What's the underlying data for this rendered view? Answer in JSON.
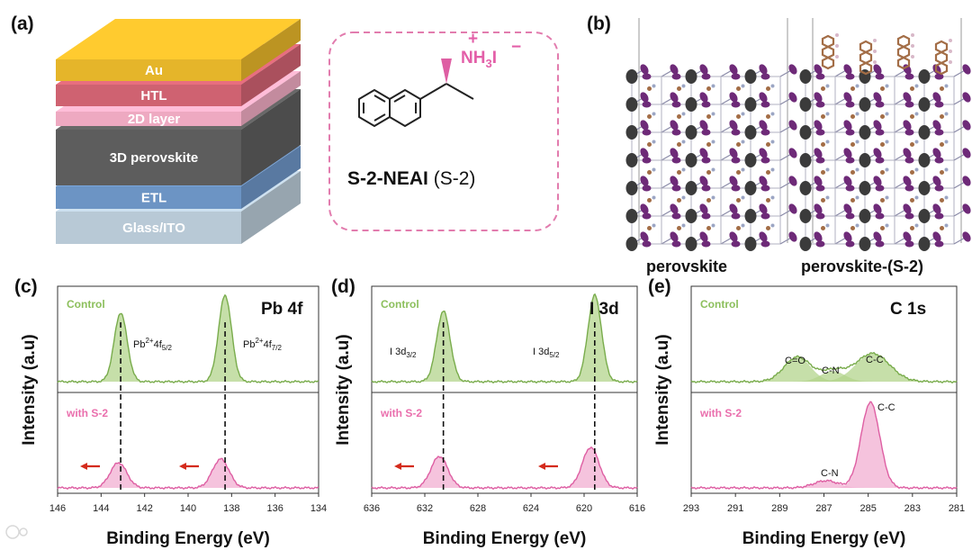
{
  "colors": {
    "control_line": "#79ac4c",
    "control_fill": "#b3d48c",
    "s2_line": "#de5fa3",
    "s2_fill": "#f2afd2",
    "control_text": "#8cbf5c",
    "s2_text": "#ea6fad",
    "arrow": "#d42b1c",
    "au": "#e5b52a",
    "htl": "#cf6271",
    "layer2d": "#eea9c1",
    "perov3d": "#5d5d5d",
    "etl": "#6c94c4",
    "glass": "#b8c9d6",
    "dashed_box": "#e27cae",
    "pb": "#3b3b3b",
    "iodine": "#6e2a78",
    "organic": "#a36d46"
  },
  "panel_a": {
    "letter": "(a)",
    "layers": [
      {
        "label": "Au"
      },
      {
        "label": "HTL"
      },
      {
        "label": "2D layer"
      },
      {
        "label": "3D perovskite"
      },
      {
        "label": "ETL"
      },
      {
        "label": "Glass/ITO"
      }
    ],
    "molecule": {
      "ammonium_main": "NH",
      "ammonium_sub": "3",
      "ammonium_tail": "I",
      "minus": "−",
      "plus": "+",
      "name": "S-2-NEAI",
      "short": "(S-2)"
    }
  },
  "panel_b": {
    "letter": "(b)",
    "labels": [
      "perovskite",
      "perovskite-(S-2)"
    ]
  },
  "xps": [
    {
      "letter": "(c)",
      "title": "Pb 4f",
      "top_label": "Control",
      "bottom_label": "with S-2",
      "ylabel": "Intensity (a.u)",
      "xlabel": "Binding Energy (eV)",
      "ticks": [
        "146",
        "144",
        "142",
        "140",
        "138",
        "136",
        "134"
      ],
      "peak_labels": [
        {
          "main": "Pb",
          "sup": "2+",
          "mid": "4f",
          "sub": "5/2"
        },
        {
          "main": "Pb",
          "sup": "2+",
          "mid": "4f",
          "sub": "7/2"
        }
      ]
    },
    {
      "letter": "(d)",
      "title": "I  3d",
      "top_label": "Control",
      "bottom_label": "with S-2",
      "ylabel": "Intensity (a.u)",
      "xlabel": "Binding Energy (eV)",
      "ticks": [
        "636",
        "632",
        "628",
        "624",
        "620",
        "616"
      ],
      "peak_labels": [
        {
          "main": "I 3d",
          "sub": "3/2"
        },
        {
          "main": "I 3d",
          "sub": "5/2"
        }
      ]
    },
    {
      "letter": "(e)",
      "title": "C  1s",
      "top_label": "Control",
      "bottom_label": "with S-2",
      "ylabel": "Intensity (a.u)",
      "xlabel": "Binding Energy (eV)",
      "ticks": [
        "293",
        "291",
        "289",
        "287",
        "285",
        "283",
        "281"
      ],
      "top_peaks": [
        "C=O",
        "C-N",
        "C-C"
      ],
      "bottom_peaks": [
        "C-N",
        "C-C"
      ]
    }
  ],
  "chart_data": [
    {
      "type": "line",
      "title": "Pb 4f",
      "xlabel": "Binding Energy (eV)",
      "ylabel": "Intensity (a.u)",
      "xlim": [
        146,
        134
      ],
      "series": [
        {
          "name": "Control",
          "peaks": [
            {
              "center": 143.1,
              "height": 0.78,
              "fwhm": 0.7
            },
            {
              "center": 138.3,
              "height": 0.98,
              "fwhm": 0.7
            }
          ]
        },
        {
          "name": "with S-2",
          "peaks": [
            {
              "center": 143.2,
              "height": 0.28,
              "fwhm": 0.9
            },
            {
              "center": 138.5,
              "height": 0.32,
              "fwhm": 0.9
            }
          ]
        }
      ],
      "reference_lines": [
        143.1,
        138.3
      ]
    },
    {
      "type": "line",
      "title": "I 3d",
      "xlabel": "Binding Energy (eV)",
      "ylabel": "Intensity (a.u)",
      "xlim": [
        636,
        616
      ],
      "series": [
        {
          "name": "Control",
          "peaks": [
            {
              "center": 630.6,
              "height": 0.8,
              "fwhm": 1.2
            },
            {
              "center": 619.2,
              "height": 0.98,
              "fwhm": 1.2
            }
          ]
        },
        {
          "name": "with S-2",
          "peaks": [
            {
              "center": 630.9,
              "height": 0.35,
              "fwhm": 1.5
            },
            {
              "center": 619.5,
              "height": 0.45,
              "fwhm": 1.5
            }
          ]
        }
      ],
      "reference_lines": [
        630.6,
        619.2
      ]
    },
    {
      "type": "line",
      "title": "C 1s",
      "xlabel": "Binding Energy (eV)",
      "ylabel": "Intensity (a.u)",
      "xlim": [
        293,
        281
      ],
      "series": [
        {
          "name": "Control",
          "peaks": [
            {
              "label": "C=O",
              "center": 288.2,
              "height": 0.28,
              "fwhm": 1.4
            },
            {
              "label": "C-N",
              "center": 286.6,
              "height": 0.12,
              "fwhm": 1.3
            },
            {
              "label": "C-C",
              "center": 284.8,
              "height": 0.32,
              "fwhm": 1.8
            }
          ]
        },
        {
          "name": "with S-2",
          "peaks": [
            {
              "label": "C-N",
              "center": 286.9,
              "height": 0.08,
              "fwhm": 1.3
            },
            {
              "label": "C-C",
              "center": 284.9,
              "height": 0.95,
              "fwhm": 1.0
            }
          ]
        }
      ]
    }
  ]
}
